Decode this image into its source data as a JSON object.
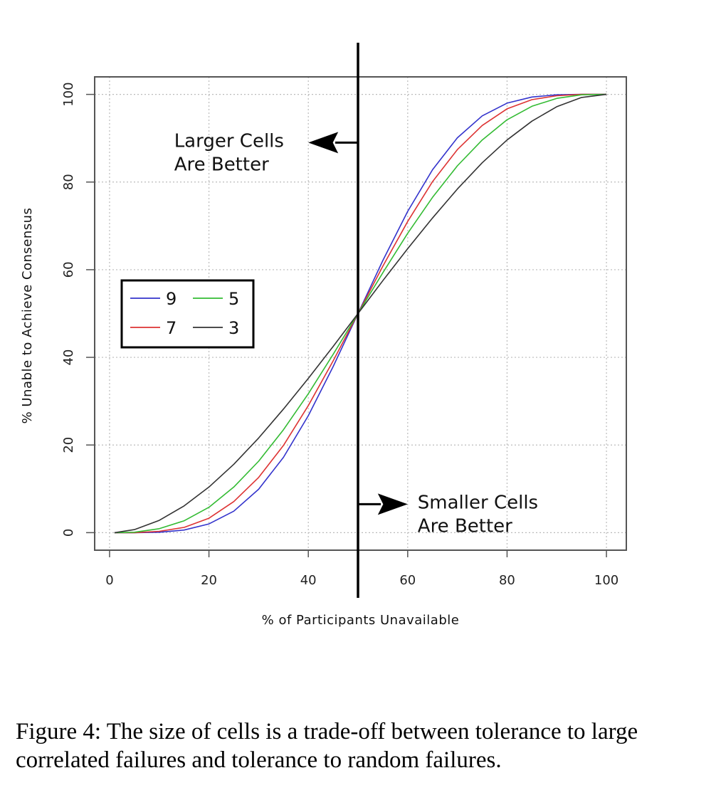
{
  "chart_data": {
    "type": "line",
    "title": "",
    "xlabel": "% of Participants Unavailable",
    "ylabel": "% Unable to Achieve Consensus",
    "xlim": [
      -3,
      104
    ],
    "ylim": [
      -4,
      104
    ],
    "x_ticks": [
      0,
      20,
      40,
      60,
      80,
      100
    ],
    "y_ticks": [
      0,
      20,
      40,
      60,
      80,
      100
    ],
    "grid": true,
    "legend": {
      "placement": "center-left",
      "entries": [
        {
          "label": "9",
          "color": "#3333cc"
        },
        {
          "label": "5",
          "color": "#33bb33"
        },
        {
          "label": "7",
          "color": "#dd3333"
        },
        {
          "label": "3",
          "color": "#333333"
        }
      ]
    },
    "x": [
      1,
      5,
      10,
      15,
      20,
      25,
      30,
      35,
      40,
      45,
      50,
      55,
      60,
      65,
      70,
      75,
      80,
      85,
      90,
      95,
      100
    ],
    "series": [
      {
        "name": "9",
        "color": "#3333cc",
        "values": [
          0,
          0,
          0.1,
          0.6,
          2,
          4.9,
          9.9,
          17.2,
          26.7,
          37.9,
          50,
          62.1,
          73.3,
          82.8,
          90.1,
          95.1,
          98,
          99.4,
          99.9,
          100,
          100
        ]
      },
      {
        "name": "7",
        "color": "#dd3333",
        "values": [
          0,
          0,
          0.3,
          1.2,
          3.3,
          7.1,
          12.6,
          19.9,
          29,
          39.2,
          50,
          60.8,
          71,
          80.1,
          87.4,
          92.9,
          96.7,
          98.8,
          99.7,
          100,
          100
        ]
      },
      {
        "name": "5",
        "color": "#33bb33",
        "values": [
          0,
          0.1,
          0.9,
          2.7,
          5.8,
          10.4,
          16.3,
          23.5,
          31.7,
          40.7,
          50,
          59.3,
          68.3,
          76.5,
          83.7,
          89.6,
          94.2,
          97.3,
          99.1,
          99.9,
          100
        ]
      },
      {
        "name": "3",
        "color": "#333333",
        "values": [
          0,
          0.7,
          2.8,
          6.1,
          10.4,
          15.6,
          21.6,
          28.2,
          35.2,
          42.5,
          50,
          57.5,
          64.8,
          71.8,
          78.4,
          84.4,
          89.6,
          93.9,
          97.2,
          99.3,
          100
        ]
      }
    ],
    "threshold": {
      "x": 50,
      "color": "#000000"
    },
    "annotations": [
      {
        "lines": [
          "Larger Cells",
          "Are Better"
        ],
        "x": 13,
        "y": 88,
        "arrow_from": [
          50,
          89
        ],
        "arrow_to": [
          40,
          89
        ]
      },
      {
        "lines": [
          "Smaller Cells",
          "Are Better"
        ],
        "x": 62,
        "y": 5.5,
        "arrow_from": [
          50,
          6.5
        ],
        "arrow_to": [
          60,
          6.5
        ]
      }
    ]
  },
  "caption": "Figure 4: The size of cells is a trade-off between tolerance to large correlated failures and tolerance to random failures."
}
